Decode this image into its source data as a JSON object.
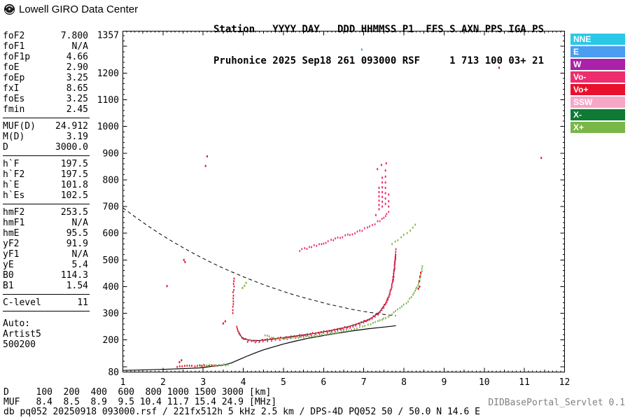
{
  "header": {
    "brand": "Lowell GIRO Data Center",
    "station_line1": "Station   YYYY DAY   DDD HHMMSS P1  FFS S AXN PPS IGA PS",
    "station_line2": "Pruhonice 2025 Sep18 261 093000 RSF     1 713 100 03+ 21"
  },
  "params": [
    {
      "label": "foF2",
      "value": "7.800"
    },
    {
      "label": "foF1",
      "value": "N/A"
    },
    {
      "label": "foF1p",
      "value": "4.66"
    },
    {
      "label": "foE",
      "value": "2.90"
    },
    {
      "label": "foEp",
      "value": "3.25"
    },
    {
      "label": "fxI",
      "value": "8.65"
    },
    {
      "label": "foEs",
      "value": "3.25"
    },
    {
      "label": "fmin",
      "value": "2.45"
    },
    {
      "sep": true
    },
    {
      "label": "MUF(D)",
      "value": "24.912"
    },
    {
      "label": "M(D)",
      "value": "3.19"
    },
    {
      "label": "D",
      "value": "3000.0"
    },
    {
      "sep": true
    },
    {
      "label": "h`F",
      "value": "197.5"
    },
    {
      "label": "h`F2",
      "value": "197.5"
    },
    {
      "label": "h`E",
      "value": "101.8"
    },
    {
      "label": "h`Es",
      "value": "102.5"
    },
    {
      "sep": true
    },
    {
      "label": "hmF2",
      "value": "253.5"
    },
    {
      "label": "hmF1",
      "value": "N/A"
    },
    {
      "label": "hmE",
      "value": "95.5"
    },
    {
      "label": "yF2",
      "value": "91.9"
    },
    {
      "label": "yF1",
      "value": "N/A"
    },
    {
      "label": "yE",
      "value": "5.4"
    },
    {
      "label": "B0",
      "value": "114.3"
    },
    {
      "label": "B1",
      "value": "1.54"
    },
    {
      "sep": true
    },
    {
      "label": "C-level",
      "value": "11"
    },
    {
      "sep": true
    },
    {
      "gap": true
    },
    {
      "label": "Auto:",
      "value": ""
    },
    {
      "label": "Artist5",
      "value": ""
    },
    {
      "label": "500200",
      "value": ""
    }
  ],
  "legend": [
    {
      "label": "NNE",
      "color": "#29c8e8"
    },
    {
      "label": "E",
      "color": "#4a9df0"
    },
    {
      "label": "W",
      "color": "#aa22aa"
    },
    {
      "label": "Vo-",
      "color": "#ee2d6e"
    },
    {
      "label": "Vo+",
      "color": "#e8112d"
    },
    {
      "label": "SSW",
      "color": "#f7a6c6"
    },
    {
      "label": "X-",
      "color": "#0f7a33"
    },
    {
      "label": "X+",
      "color": "#7ab648"
    }
  ],
  "footer": {
    "d_row": {
      "label": "D",
      "values": [
        "100",
        "200",
        "400",
        "600",
        "800",
        "1000",
        "1500",
        "3000"
      ],
      "unit": "[km]"
    },
    "muf_row": {
      "label": "MUF",
      "values": [
        "8.4",
        "8.5",
        "8.9",
        "9.5",
        "10.4",
        "11.7",
        "15.4",
        "24.9"
      ],
      "unit": "[MHz]"
    },
    "file_info": "db pq052 20250918 093000.rsf / 221fx512h 5 kHz 2.5 km / DPS-4D PQ052 50 / 50.0 N 14.6 E",
    "servlet": "DIDBasePortal_Servlet 0.1"
  },
  "chart_data": {
    "type": "scatter",
    "x_unit": "MHz",
    "y_unit": "km",
    "x_range": [
      1,
      12
    ],
    "y_range": [
      80,
      1357
    ],
    "legend_position": "right",
    "x_ticks": [
      1,
      2,
      3,
      4,
      5,
      6,
      7,
      8,
      9,
      10,
      11,
      12
    ],
    "y_ticks": [
      {
        "v": 1357,
        "label": "1357"
      },
      {
        "v": 1300,
        "label": ""
      },
      {
        "v": 1200,
        "label": "1200"
      },
      {
        "v": 1100,
        "label": "1100"
      },
      {
        "v": 1000,
        "label": "1000"
      },
      {
        "v": 900,
        "label": "900"
      },
      {
        "v": 800,
        "label": "800"
      },
      {
        "v": 700,
        "label": "700"
      },
      {
        "v": 600,
        "label": "600"
      },
      {
        "v": 500,
        "label": "500"
      },
      {
        "v": 400,
        "label": "400"
      },
      {
        "v": 300,
        "label": "300"
      },
      {
        "v": 200,
        "label": "200"
      },
      {
        "v": 100,
        "label": ""
      },
      {
        "v": 80,
        "label": "80"
      }
    ],
    "series": [
      {
        "name": "muf-transmission-curve",
        "type": "line",
        "color": "#000000",
        "width": 1,
        "dash": "5 4",
        "points": [
          [
            1.0,
            695
          ],
          [
            1.3,
            662
          ],
          [
            1.6,
            630
          ],
          [
            1.9,
            600
          ],
          [
            2.2,
            572
          ],
          [
            2.5,
            546
          ],
          [
            2.8,
            521
          ],
          [
            3.1,
            498
          ],
          [
            3.4,
            476
          ],
          [
            3.7,
            456
          ],
          [
            4.0,
            437
          ],
          [
            4.3,
            419
          ],
          [
            4.6,
            402
          ],
          [
            4.9,
            387
          ],
          [
            5.2,
            372
          ],
          [
            5.5,
            359
          ],
          [
            5.8,
            347
          ],
          [
            6.1,
            335
          ],
          [
            6.4,
            325
          ],
          [
            6.7,
            315
          ],
          [
            7.0,
            307
          ],
          [
            7.3,
            300
          ],
          [
            7.6,
            294
          ],
          [
            7.8,
            291
          ]
        ]
      },
      {
        "name": "true-height-profile",
        "type": "line",
        "color": "#000000",
        "width": 1.2,
        "points": [
          [
            1.0,
            86
          ],
          [
            1.5,
            88
          ],
          [
            2.0,
            90
          ],
          [
            2.5,
            93
          ],
          [
            2.9,
            95.5
          ],
          [
            3.05,
            98
          ],
          [
            3.2,
            101
          ],
          [
            3.3,
            103
          ],
          [
            3.4,
            104
          ],
          [
            3.5,
            106
          ],
          [
            3.7,
            114
          ],
          [
            3.9,
            127
          ],
          [
            4.1,
            140
          ],
          [
            4.3,
            152
          ],
          [
            4.5,
            163
          ],
          [
            4.7,
            172
          ],
          [
            5.0,
            185
          ],
          [
            5.3,
            196
          ],
          [
            5.6,
            206
          ],
          [
            5.9,
            214
          ],
          [
            6.2,
            222
          ],
          [
            6.5,
            229
          ],
          [
            6.8,
            236
          ],
          [
            7.1,
            242
          ],
          [
            7.4,
            247
          ],
          [
            7.6,
            250
          ],
          [
            7.8,
            253.5
          ]
        ]
      },
      {
        "name": "o-trace-autofit",
        "type": "line",
        "color": "#000000",
        "width": 1,
        "points": [
          [
            3.88,
            232
          ],
          [
            3.95,
            212
          ],
          [
            4.05,
            203
          ],
          [
            4.2,
            199
          ],
          [
            4.4,
            198
          ],
          [
            4.7,
            203
          ],
          [
            5.0,
            209
          ],
          [
            5.3,
            215
          ],
          [
            5.6,
            221
          ],
          [
            5.9,
            228
          ],
          [
            6.2,
            236
          ],
          [
            6.5,
            246
          ],
          [
            6.8,
            258
          ],
          [
            7.0,
            269
          ],
          [
            7.2,
            283
          ],
          [
            7.35,
            299
          ],
          [
            7.45,
            316
          ],
          [
            7.55,
            339
          ],
          [
            7.63,
            367
          ],
          [
            7.69,
            397
          ],
          [
            7.73,
            427
          ],
          [
            7.76,
            458
          ],
          [
            7.78,
            490
          ],
          [
            7.8,
            520
          ]
        ]
      },
      {
        "name": "o-trace",
        "type": "dots",
        "dense": true,
        "color": "#e8112d",
        "points": [
          [
            3.84,
            250
          ],
          [
            3.87,
            236
          ],
          [
            3.91,
            220
          ],
          [
            3.96,
            209
          ],
          [
            4.05,
            202
          ],
          [
            4.2,
            198
          ],
          [
            4.4,
            198
          ],
          [
            4.6,
            201
          ],
          [
            4.8,
            205
          ],
          [
            5.0,
            209
          ],
          [
            5.2,
            213
          ],
          [
            5.4,
            217
          ],
          [
            5.6,
            221
          ],
          [
            5.8,
            226
          ],
          [
            6.0,
            231
          ],
          [
            6.2,
            236
          ],
          [
            6.4,
            242
          ],
          [
            6.6,
            249
          ],
          [
            6.8,
            258
          ],
          [
            7.0,
            269
          ],
          [
            7.2,
            283
          ],
          [
            7.35,
            298
          ],
          [
            7.45,
            315
          ],
          [
            7.55,
            338
          ],
          [
            7.62,
            362
          ],
          [
            7.68,
            390
          ],
          [
            7.72,
            418
          ],
          [
            7.75,
            448
          ],
          [
            7.77,
            478
          ],
          [
            7.79,
            510
          ],
          [
            7.8,
            540
          ]
        ]
      },
      {
        "name": "o-trace-secondary",
        "type": "dots",
        "dense": true,
        "spacing": 5,
        "color": "#ee2d6e",
        "points": [
          [
            4.1,
            194
          ],
          [
            4.4,
            193
          ],
          [
            4.7,
            198
          ],
          [
            5.0,
            204
          ],
          [
            5.3,
            210
          ],
          [
            5.6,
            216
          ],
          [
            5.9,
            223
          ],
          [
            6.2,
            231
          ],
          [
            6.5,
            241
          ],
          [
            6.8,
            253
          ],
          [
            7.0,
            265
          ],
          [
            7.2,
            279
          ],
          [
            7.35,
            295
          ],
          [
            7.5,
            322
          ],
          [
            7.6,
            352
          ],
          [
            7.67,
            386
          ],
          [
            7.72,
            424
          ],
          [
            7.76,
            468
          ],
          [
            7.78,
            502
          ]
        ]
      },
      {
        "name": "x-trace",
        "type": "dots",
        "dense": true,
        "color": "#7ab648",
        "points": [
          [
            4.55,
            218
          ],
          [
            4.7,
            210
          ],
          [
            4.9,
            206
          ],
          [
            5.1,
            206
          ],
          [
            5.3,
            208
          ],
          [
            5.5,
            211
          ],
          [
            5.7,
            214
          ],
          [
            5.9,
            218
          ],
          [
            6.1,
            222
          ],
          [
            6.3,
            227
          ],
          [
            6.5,
            233
          ],
          [
            6.7,
            239
          ],
          [
            6.9,
            247
          ],
          [
            7.1,
            256
          ],
          [
            7.3,
            267
          ],
          [
            7.5,
            280
          ],
          [
            7.7,
            297
          ],
          [
            7.9,
            318
          ],
          [
            8.05,
            337
          ],
          [
            8.15,
            354
          ],
          [
            8.25,
            376
          ],
          [
            8.33,
            398
          ],
          [
            8.39,
            422
          ],
          [
            8.43,
            448
          ],
          [
            8.46,
            476
          ]
        ]
      },
      {
        "name": "es-o-trace",
        "type": "dots",
        "dense": true,
        "color": "#e8112d",
        "points": [
          [
            2.36,
            101
          ],
          [
            2.6,
            102
          ],
          [
            2.85,
            103
          ],
          [
            3.1,
            103
          ],
          [
            3.28,
            104
          ]
        ]
      },
      {
        "name": "es-x-trace",
        "type": "dots",
        "dense": true,
        "color": "#7ab648",
        "points": [
          [
            2.95,
            105
          ],
          [
            3.2,
            106
          ],
          [
            3.45,
            107
          ],
          [
            3.62,
            107
          ]
        ]
      },
      {
        "name": "second-order-o-trace",
        "type": "dots",
        "dense": true,
        "spacing": 4,
        "jitter": 2.5,
        "color": "#ee2d6e",
        "points": [
          [
            5.4,
            536
          ],
          [
            5.7,
            550
          ],
          [
            6.0,
            564
          ],
          [
            6.3,
            578
          ],
          [
            6.6,
            592
          ],
          [
            6.9,
            608
          ],
          [
            7.15,
            624
          ],
          [
            7.35,
            642
          ],
          [
            7.5,
            660
          ],
          [
            7.62,
            680
          ]
        ]
      },
      {
        "name": "second-order-x-trace",
        "type": "dots",
        "dense": true,
        "spacing": 5,
        "jitter": 2,
        "color": "#7ab648",
        "points": [
          [
            7.7,
            560
          ],
          [
            7.85,
            575
          ],
          [
            8.0,
            592
          ],
          [
            8.15,
            612
          ],
          [
            8.28,
            632
          ]
        ]
      },
      {
        "name": "spread-f-echoes",
        "type": "dots",
        "color": "#ee2d6e",
        "points": [
          [
            7.38,
            690
          ],
          [
            7.38,
            706
          ],
          [
            7.38,
            722
          ],
          [
            7.38,
            738
          ],
          [
            7.38,
            754
          ],
          [
            7.38,
            770
          ],
          [
            7.46,
            700
          ],
          [
            7.46,
            718
          ],
          [
            7.46,
            736
          ],
          [
            7.46,
            754
          ],
          [
            7.46,
            772
          ],
          [
            7.46,
            790
          ],
          [
            7.46,
            808
          ],
          [
            7.54,
            710
          ],
          [
            7.54,
            730
          ],
          [
            7.54,
            750
          ],
          [
            7.54,
            770
          ],
          [
            7.54,
            790
          ],
          [
            7.54,
            812
          ],
          [
            7.54,
            835
          ],
          [
            7.62,
            700
          ],
          [
            7.62,
            720
          ],
          [
            7.62,
            745
          ],
          [
            7.3,
            668
          ],
          [
            7.34,
            840
          ],
          [
            7.44,
            856
          ],
          [
            7.56,
            862
          ]
        ]
      },
      {
        "name": "interference-red",
        "type": "dots",
        "color": "#e8112d",
        "points": [
          [
            2.1,
            402
          ],
          [
            2.52,
            500
          ],
          [
            2.55,
            492
          ],
          [
            3.06,
            852
          ],
          [
            3.1,
            888
          ],
          [
            10.37,
            1220
          ],
          [
            11.42,
            882
          ],
          [
            2.41,
            117
          ],
          [
            2.46,
            124
          ],
          [
            3.5,
            262
          ],
          [
            3.55,
            270
          ],
          [
            8.38,
            420
          ],
          [
            8.4,
            438
          ],
          [
            8.42,
            452
          ],
          [
            8.39,
            400
          ],
          [
            8.36,
            392
          ]
        ]
      },
      {
        "name": "interference-streak",
        "type": "dots",
        "dense": true,
        "spacing": 4,
        "jitter": 1.5,
        "color": "#e8112d",
        "points": [
          [
            3.74,
            302
          ],
          [
            3.75,
            335
          ],
          [
            3.75,
            368
          ],
          [
            3.76,
            400
          ],
          [
            3.77,
            430
          ]
        ]
      },
      {
        "name": "interference-green",
        "type": "dots",
        "color": "#7ab648",
        "points": [
          [
            4.03,
            403
          ],
          [
            4.07,
            414
          ],
          [
            3.98,
            395
          ]
        ]
      },
      {
        "name": "interference-blue",
        "type": "dots",
        "color": "#4a9df0",
        "points": [
          [
            6.95,
            1288
          ]
        ]
      }
    ]
  }
}
